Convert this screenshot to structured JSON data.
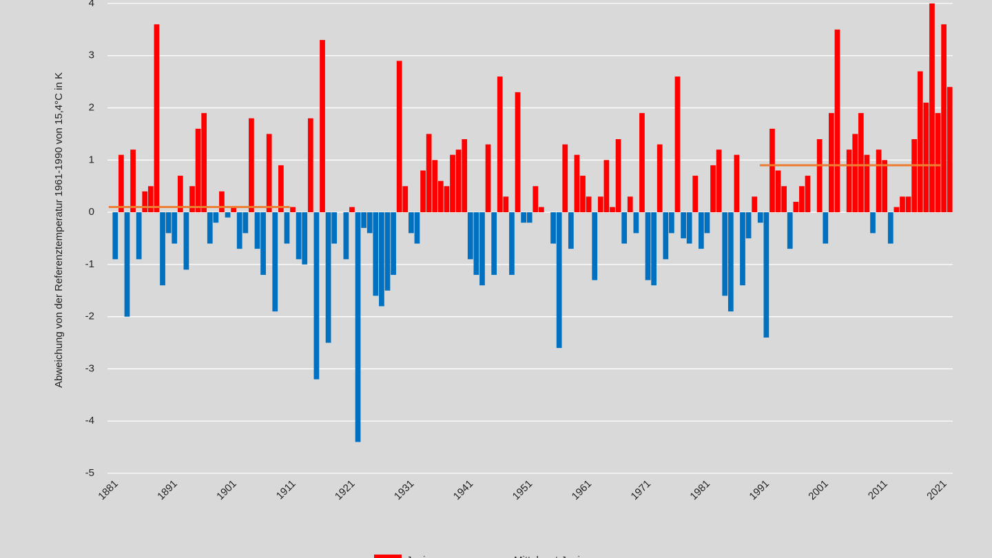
{
  "chart_data": {
    "type": "bar",
    "y_label": "Abweichung von der Referenztemperatur 1961-1990 von 15,4°C in K",
    "categories": [
      "1881",
      null,
      null,
      null,
      null,
      null,
      null,
      null,
      null,
      null,
      "1891",
      null,
      null,
      null,
      null,
      null,
      null,
      null,
      null,
      null,
      "1901",
      null,
      null,
      null,
      null,
      null,
      null,
      null,
      null,
      null,
      "1911",
      null,
      null,
      null,
      null,
      null,
      null,
      null,
      null,
      null,
      "1921",
      null,
      null,
      null,
      null,
      null,
      null,
      null,
      null,
      null,
      "1931",
      null,
      null,
      null,
      null,
      null,
      null,
      null,
      null,
      null,
      "1941",
      null,
      null,
      null,
      null,
      null,
      null,
      null,
      null,
      null,
      "1951",
      null,
      null,
      null,
      null,
      null,
      null,
      null,
      null,
      null,
      "1961",
      null,
      null,
      null,
      null,
      null,
      null,
      null,
      null,
      null,
      "1971",
      null,
      null,
      null,
      null,
      null,
      null,
      null,
      null,
      null,
      "1981",
      null,
      null,
      null,
      null,
      null,
      null,
      null,
      null,
      null,
      "1991",
      null,
      null,
      null,
      null,
      null,
      null,
      null,
      null,
      null,
      "2001",
      null,
      null,
      null,
      null,
      null,
      null,
      null,
      null,
      null,
      "2011",
      null,
      null,
      null,
      null,
      null,
      null,
      null,
      null,
      null,
      "2021",
      null
    ],
    "series": [
      {
        "name": "Juni",
        "color": "#ff0000",
        "negative_color": "#0070c0",
        "values": [
          -0.9,
          1.1,
          -2.0,
          1.2,
          -0.9,
          0.4,
          0.5,
          3.6,
          -1.4,
          -0.4,
          -0.6,
          0.7,
          -1.1,
          0.5,
          1.6,
          1.9,
          -0.6,
          -0.2,
          0.4,
          -0.1,
          0.1,
          -0.7,
          -0.4,
          1.8,
          -0.7,
          -1.2,
          1.5,
          -1.9,
          0.9,
          -0.6,
          0.1,
          -0.9,
          -1.0,
          1.8,
          -3.2,
          3.3,
          -2.5,
          -0.6,
          0,
          -0.9,
          0.1,
          -4.4,
          -0.3,
          -0.4,
          -1.6,
          -1.8,
          -1.5,
          -1.2,
          2.9,
          0.5,
          -0.4,
          -0.6,
          0.8,
          1.5,
          1.0,
          0.6,
          0.5,
          1.1,
          1.2,
          1.4,
          -0.9,
          -1.2,
          -1.4,
          1.3,
          -1.2,
          2.6,
          0.3,
          -1.2,
          2.3,
          -0.2,
          -0.2,
          0.5,
          0.1,
          0,
          -0.6,
          -2.6,
          1.3,
          -0.7,
          1.1,
          0.7,
          0.3,
          -1.3,
          0.3,
          1.0,
          0.1,
          1.4,
          -0.6,
          0.3,
          -0.4,
          1.9,
          -1.3,
          -1.4,
          1.3,
          -0.9,
          -0.4,
          2.6,
          -0.5,
          -0.6,
          0.7,
          -0.7,
          -0.4,
          0.9,
          1.2,
          -1.6,
          -1.9,
          1.1,
          -1.4,
          -0.5,
          0.3,
          -0.2,
          -2.4,
          1.6,
          0.8,
          0.5,
          -0.7,
          0.2,
          0.5,
          0.7,
          0,
          1.4,
          -0.6,
          1.9,
          3.5,
          0,
          1.2,
          1.5,
          1.9,
          1.1,
          -0.4,
          1.2,
          1.0,
          -0.6,
          0.1,
          0.3,
          0.3,
          1.4,
          2.7,
          2.1,
          4.0,
          1.9,
          3.6,
          2.4
        ]
      },
      {
        "name": "Mittelwert Juni",
        "color": "#ed7d31",
        "segments": [
          {
            "from": 0,
            "to": 29,
            "value": 0.1
          },
          {
            "from": 110,
            "to": 139,
            "value": 0.9
          }
        ]
      }
    ],
    "ylim": [
      -5,
      4
    ],
    "yticks": [
      -5,
      -4,
      -3,
      -2,
      -1,
      0,
      1,
      2,
      3,
      4
    ],
    "grid": true
  }
}
